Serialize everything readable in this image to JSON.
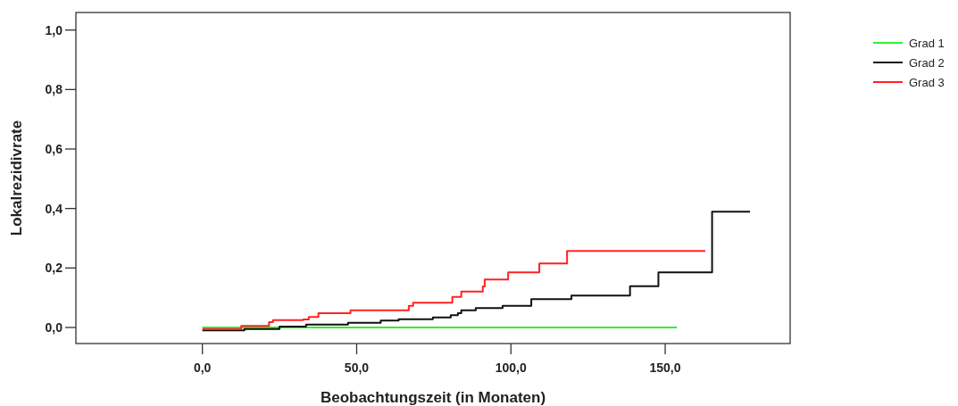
{
  "chart_data": {
    "type": "step",
    "xlabel": "Beobachtungszeit (in Monaten)",
    "ylabel": "Lokalrezidivrate",
    "xlim": [
      -41,
      190.5
    ],
    "ylim": [
      -0.054,
      1.059
    ],
    "xticks": [
      {
        "value": 0,
        "label": "0,0"
      },
      {
        "value": 50,
        "label": "50,0"
      },
      {
        "value": 100,
        "label": "100,0"
      },
      {
        "value": 150,
        "label": "150,0"
      }
    ],
    "yticks": [
      {
        "value": 0,
        "label": "0,0"
      },
      {
        "value": 0.2,
        "label": "0,2"
      },
      {
        "value": 0.4,
        "label": "0,4"
      },
      {
        "value": 0.6,
        "label": "0,6"
      },
      {
        "value": 0.8,
        "label": "0,8"
      },
      {
        "value": 1,
        "label": "1,0"
      }
    ],
    "legend": "top right",
    "grid": false,
    "series": [
      {
        "name": "Grad 1",
        "color": "#33ee33",
        "x": [
          0,
          153.8
        ],
        "values": [
          0,
          0
        ]
      },
      {
        "name": "Grad 2",
        "color": "#111111",
        "x": [
          0,
          13.6,
          25,
          33.6,
          47.2,
          57.8,
          63.6,
          74.7,
          80.5,
          82.8,
          83.9,
          88.6,
          97.3,
          106.6,
          119.6,
          138.6,
          147.8,
          165.2,
          177.5
        ],
        "values": [
          -0.01,
          -0.005,
          0.003,
          0.01,
          0.016,
          0.023,
          0.028,
          0.034,
          0.041,
          0.048,
          0.058,
          0.065,
          0.073,
          0.095,
          0.107,
          0.139,
          0.185,
          0.389,
          0.389
        ]
      },
      {
        "name": "Grad 3",
        "color": "#ff2222",
        "x": [
          0,
          12.6,
          21.6,
          22.9,
          32.7,
          34.5,
          37.6,
          48,
          66.9,
          68.3,
          81,
          83.9,
          90.9,
          91.5,
          99.1,
          109.2,
          118.2,
          163
        ],
        "values": [
          -0.005,
          0.005,
          0.018,
          0.025,
          0.027,
          0.035,
          0.048,
          0.058,
          0.073,
          0.083,
          0.103,
          0.121,
          0.138,
          0.161,
          0.185,
          0.215,
          0.257,
          0.257
        ]
      }
    ]
  }
}
